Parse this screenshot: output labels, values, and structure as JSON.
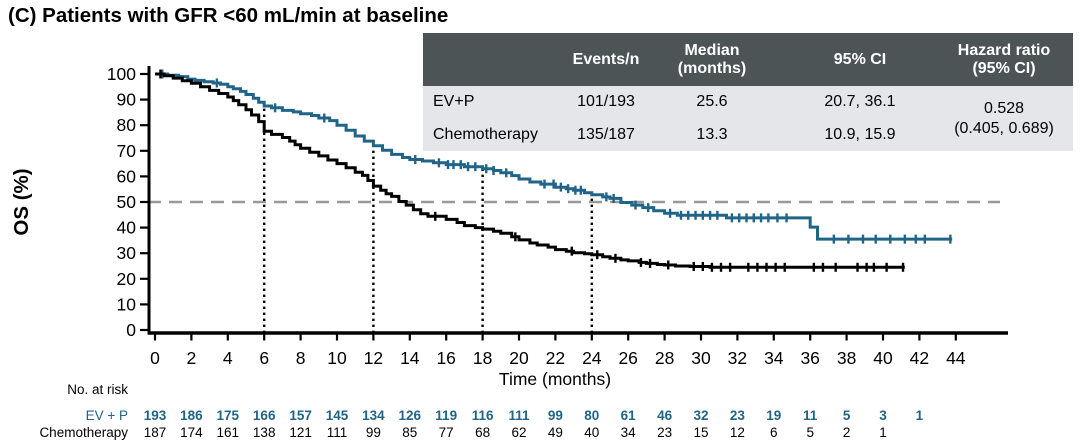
{
  "title": "(C) Patients with GFR <60 mL/min at baseline",
  "colors": {
    "ev_p": "#206488",
    "chemotherapy": "#000000",
    "median_reference_line": "#999999",
    "landmark_line": "#000000",
    "table_header_bg": "#4d5456",
    "table_body_bg": "#e4e6ea",
    "axis": "#000000"
  },
  "stats_table": {
    "headers": [
      "",
      "Events/n",
      "Median\n(months)",
      "95% CI",
      "Hazard ratio\n(95% CI)"
    ],
    "rows": [
      {
        "name": "EV+P",
        "events_n": "101/193",
        "median_months": "25.6",
        "ci_95": "20.7, 36.1"
      },
      {
        "name": "Chemotherapy",
        "events_n": "135/187",
        "median_months": "13.3",
        "ci_95": "10.9, 15.9"
      }
    ],
    "hazard_ratio": {
      "value": "0.528",
      "ci": "(0.405, 0.689)"
    }
  },
  "chart_data": {
    "type": "line",
    "subtype": "kaplan-meier-step",
    "title": "(C) Patients with GFR <60 mL/min at baseline",
    "xlabel": "Time (months)",
    "ylabel": "OS (%)",
    "xlim": [
      0,
      44
    ],
    "ylim": [
      0,
      100
    ],
    "xticks": [
      0,
      2,
      4,
      6,
      8,
      10,
      12,
      14,
      16,
      18,
      20,
      22,
      24,
      26,
      28,
      30,
      32,
      34,
      36,
      38,
      40,
      42,
      44
    ],
    "yticks": [
      0,
      10,
      20,
      30,
      40,
      50,
      60,
      70,
      80,
      90,
      100
    ],
    "grid": false,
    "reference_hline_y": 50,
    "dotted_vlines_x": [
      6,
      12,
      18,
      24
    ],
    "series": [
      {
        "name": "EV+P",
        "color": "#206488",
        "points": [
          [
            0,
            100
          ],
          [
            0.7,
            99.5
          ],
          [
            1.3,
            99
          ],
          [
            1.8,
            98
          ],
          [
            2.2,
            97.5
          ],
          [
            2.7,
            97
          ],
          [
            3.2,
            96.5
          ],
          [
            3.6,
            96
          ],
          [
            4,
            95
          ],
          [
            4.3,
            94.2
          ],
          [
            4.7,
            93.2
          ],
          [
            5,
            92
          ],
          [
            5.4,
            90.5
          ],
          [
            5.7,
            89
          ],
          [
            6,
            87.5
          ],
          [
            6.4,
            86.8
          ],
          [
            7,
            85.8
          ],
          [
            7.6,
            85.2
          ],
          [
            8,
            84.5
          ],
          [
            8.6,
            83.8
          ],
          [
            9,
            82.8
          ],
          [
            9.6,
            81.8
          ],
          [
            10,
            80
          ],
          [
            10.5,
            78
          ],
          [
            11,
            75.8
          ],
          [
            11.5,
            73.8
          ],
          [
            12,
            72
          ],
          [
            12.5,
            70.2
          ],
          [
            13,
            68.6
          ],
          [
            13.6,
            67.4
          ],
          [
            14,
            66.6
          ],
          [
            14.7,
            66
          ],
          [
            15.3,
            65.3
          ],
          [
            16,
            64.6
          ],
          [
            17,
            63.8
          ],
          [
            18,
            63
          ],
          [
            18.6,
            62.3
          ],
          [
            19,
            61.4
          ],
          [
            19.6,
            60.3
          ],
          [
            20,
            59
          ],
          [
            20.6,
            57.8
          ],
          [
            21.2,
            57
          ],
          [
            22,
            55.8
          ],
          [
            22.6,
            55.2
          ],
          [
            23,
            54.6
          ],
          [
            23.6,
            53.6
          ],
          [
            24,
            52.8
          ],
          [
            24.6,
            52
          ],
          [
            25,
            51.4
          ],
          [
            25.6,
            49.8
          ],
          [
            26.2,
            48.8
          ],
          [
            26.8,
            47.8
          ],
          [
            27.4,
            46.6
          ],
          [
            28,
            45.6
          ],
          [
            28.7,
            44.8
          ],
          [
            31.4,
            43.8
          ],
          [
            36,
            40.2
          ],
          [
            36.4,
            35.5
          ],
          [
            43.8,
            35.5
          ]
        ],
        "censor_times": [
          0.4,
          3.4,
          6.6,
          9.3,
          14.3,
          15.6,
          16.1,
          16.4,
          16.8,
          17.2,
          17.6,
          18.2,
          18.6,
          19.3,
          21.4,
          21.9,
          22.3,
          22.7,
          23.1,
          23.4,
          24.8,
          25.2,
          26.4,
          27.1,
          28.3,
          28.9,
          29.3,
          29.7,
          30.1,
          30.5,
          30.9,
          31.7,
          32.1,
          32.5,
          32.9,
          33.3,
          33.7,
          34.2,
          34.7,
          37.3,
          38.1,
          38.9,
          39.6,
          40.4,
          41.2,
          41.8,
          42.3,
          43.7
        ]
      },
      {
        "name": "Chemotherapy",
        "color": "#000000",
        "points": [
          [
            0,
            100
          ],
          [
            0.5,
            99.3
          ],
          [
            1,
            98.4
          ],
          [
            1.5,
            97.4
          ],
          [
            2,
            96.4
          ],
          [
            2.5,
            95
          ],
          [
            3,
            93.6
          ],
          [
            3.5,
            92.4
          ],
          [
            4,
            91
          ],
          [
            4.3,
            89.6
          ],
          [
            4.6,
            88
          ],
          [
            5,
            86
          ],
          [
            5.3,
            84
          ],
          [
            5.7,
            81.4
          ],
          [
            6,
            77.6
          ],
          [
            6.4,
            76.4
          ],
          [
            7,
            75.2
          ],
          [
            7.4,
            73.8
          ],
          [
            7.7,
            72.4
          ],
          [
            8,
            71
          ],
          [
            8.5,
            69.4
          ],
          [
            9,
            68
          ],
          [
            9.5,
            66.4
          ],
          [
            10,
            65
          ],
          [
            10.5,
            63.4
          ],
          [
            11,
            61.6
          ],
          [
            11.4,
            60.4
          ],
          [
            11.7,
            58.4
          ],
          [
            12,
            56.2
          ],
          [
            12.4,
            54.6
          ],
          [
            12.7,
            53.2
          ],
          [
            13,
            52.2
          ],
          [
            13.4,
            50.2
          ],
          [
            13.8,
            48.8
          ],
          [
            14.2,
            47
          ],
          [
            14.6,
            45.4
          ],
          [
            15,
            44.4
          ],
          [
            16,
            43.2
          ],
          [
            16.6,
            42
          ],
          [
            17,
            40.8
          ],
          [
            17.6,
            40
          ],
          [
            18,
            39.4
          ],
          [
            18.6,
            38.6
          ],
          [
            19,
            37.8
          ],
          [
            19.6,
            36.4
          ],
          [
            20,
            35.2
          ],
          [
            20.6,
            34
          ],
          [
            21,
            33.2
          ],
          [
            21.6,
            32.4
          ],
          [
            22,
            31.4
          ],
          [
            22.6,
            30.8
          ],
          [
            23,
            30.2
          ],
          [
            23.6,
            29.8
          ],
          [
            24,
            29.4
          ],
          [
            24.6,
            28.6
          ],
          [
            25,
            28
          ],
          [
            25.6,
            27.4
          ],
          [
            26,
            27
          ],
          [
            26.6,
            26.4
          ],
          [
            27,
            26
          ],
          [
            27.6,
            25.6
          ],
          [
            28,
            25.4
          ],
          [
            28.6,
            25
          ],
          [
            29.4,
            24.8
          ],
          [
            30.5,
            24.5
          ],
          [
            41.2,
            24.5
          ]
        ],
        "censor_times": [
          0.3,
          15.4,
          19.8,
          22.9,
          24.3,
          25.3,
          26.7,
          27.2,
          28.2,
          29.6,
          30.1,
          30.6,
          31.1,
          31.6,
          32.6,
          33.1,
          33.6,
          34.1,
          34.6,
          36.2,
          36.7,
          37.4,
          38.6,
          39.1,
          39.5,
          40.2,
          41.1
        ]
      }
    ]
  },
  "at_risk": {
    "heading": "No. at risk",
    "time_step": 2,
    "rows": [
      {
        "label": "EV + P",
        "color": "#206488",
        "bold": true,
        "values": [
          193,
          186,
          175,
          166,
          157,
          145,
          134,
          126,
          119,
          116,
          111,
          99,
          80,
          61,
          46,
          32,
          23,
          19,
          11,
          5,
          3,
          1
        ]
      },
      {
        "label": "Chemotherapy",
        "color": "#000000",
        "bold": false,
        "values": [
          187,
          174,
          161,
          138,
          121,
          111,
          99,
          85,
          77,
          68,
          62,
          49,
          40,
          34,
          23,
          15,
          12,
          6,
          5,
          2,
          1
        ]
      }
    ]
  }
}
